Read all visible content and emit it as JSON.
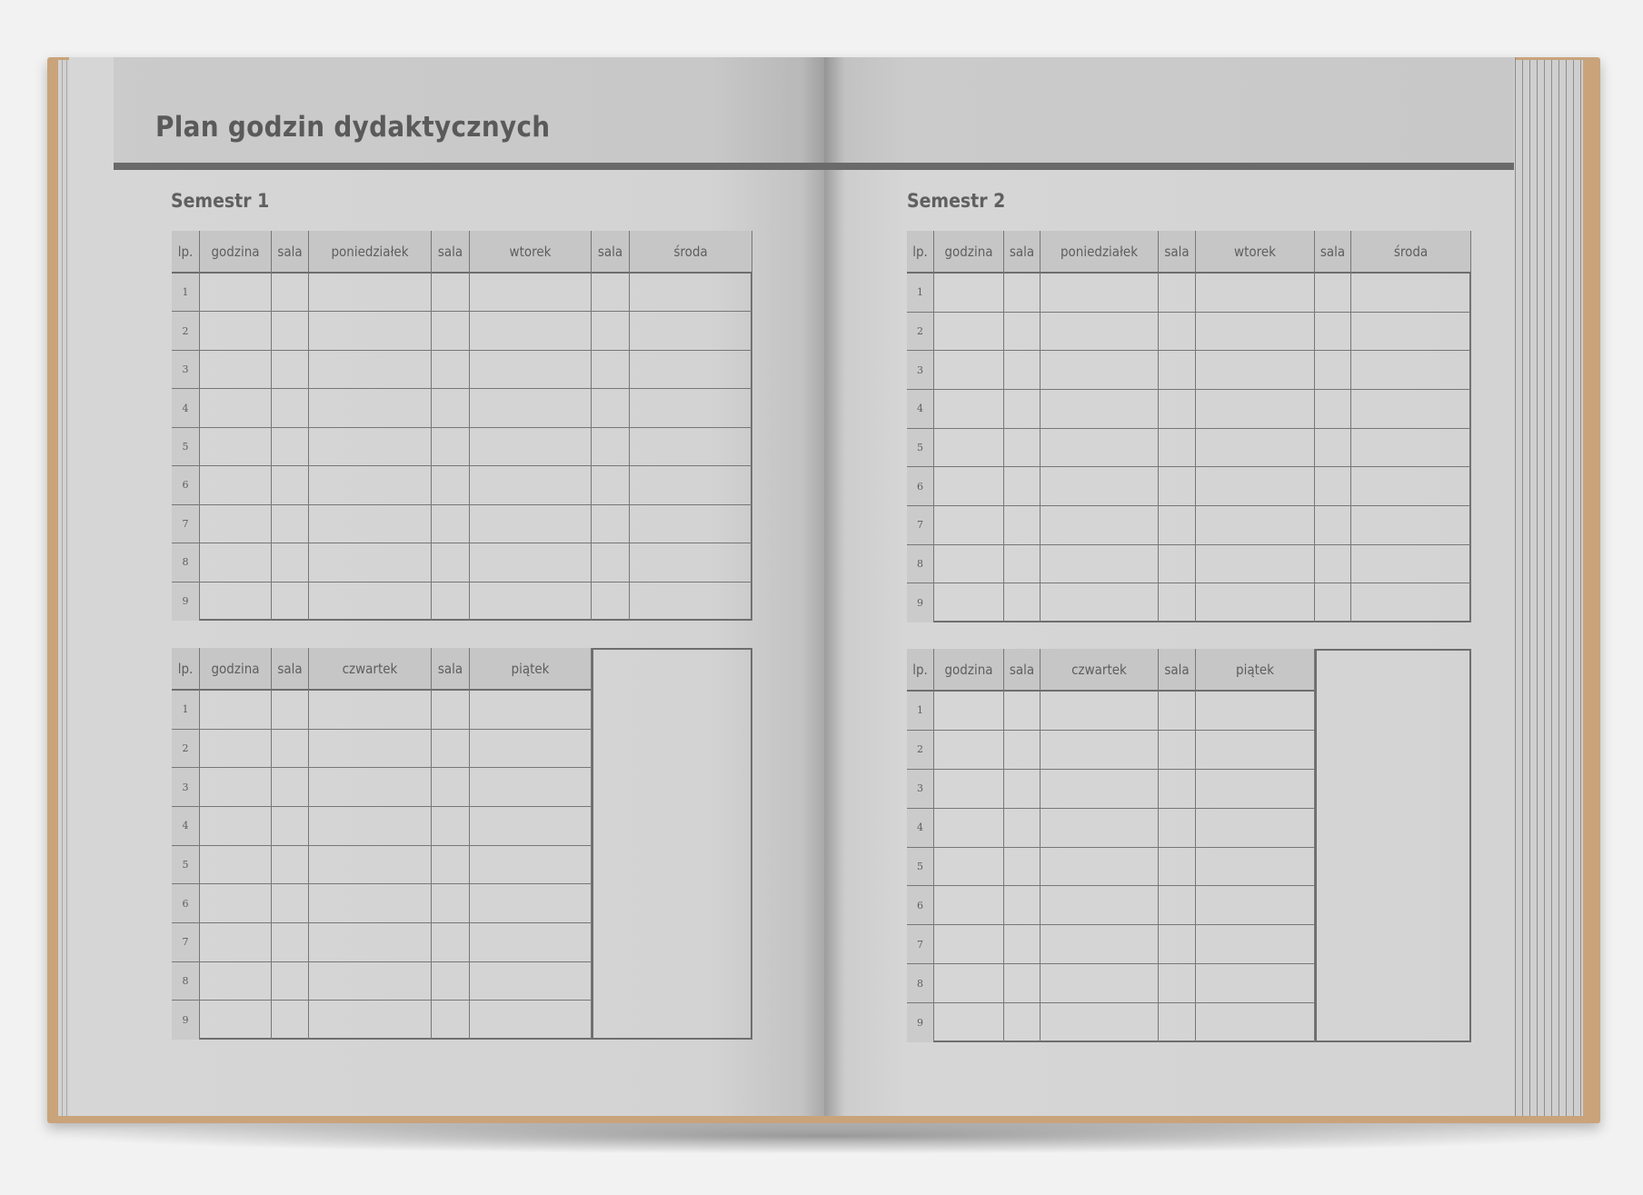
{
  "book": {
    "title": "Plan godzin dydaktycznych",
    "cover_color": "#c9a37a",
    "pages": [
      {
        "semester": "Semestr 1",
        "tables": [
          {
            "headers": [
              "lp.",
              "godzina",
              "sala",
              "poniedziałek",
              "sala",
              "wtorek",
              "sala",
              "środa"
            ],
            "rows": [
              "1",
              "2",
              "3",
              "4",
              "5",
              "6",
              "7",
              "8",
              "9"
            ]
          },
          {
            "headers": [
              "lp.",
              "godzina",
              "sala",
              "czwartek",
              "sala",
              "piątek"
            ],
            "rows": [
              "1",
              "2",
              "3",
              "4",
              "5",
              "6",
              "7",
              "8",
              "9"
            ]
          }
        ]
      },
      {
        "semester": "Semestr 2",
        "tables": [
          {
            "headers": [
              "lp.",
              "godzina",
              "sala",
              "poniedziałek",
              "sala",
              "wtorek",
              "sala",
              "środa"
            ],
            "rows": [
              "1",
              "2",
              "3",
              "4",
              "5",
              "6",
              "7",
              "8",
              "9"
            ]
          },
          {
            "headers": [
              "lp.",
              "godzina",
              "sala",
              "czwartek",
              "sala",
              "piątek"
            ],
            "rows": [
              "1",
              "2",
              "3",
              "4",
              "5",
              "6",
              "7",
              "8",
              "9"
            ]
          }
        ]
      }
    ]
  }
}
